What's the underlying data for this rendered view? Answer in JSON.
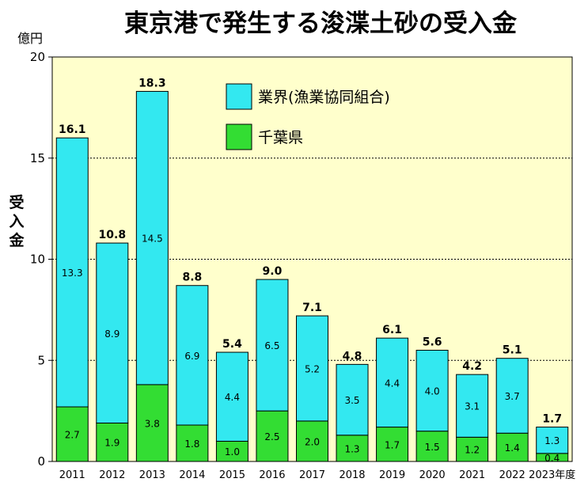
{
  "chart_data": {
    "type": "bar",
    "stacked": true,
    "title": "東京港で発生する浚渫土砂の受入金",
    "unit_label": "億円",
    "ylabel": "受入金",
    "ylim": [
      0,
      20
    ],
    "yticks": [
      0,
      5,
      10,
      15,
      20
    ],
    "grid": true,
    "legend_position": "top-right",
    "categories": [
      "2011",
      "2012",
      "2013",
      "2014",
      "2015",
      "2016",
      "2017",
      "2018",
      "2019",
      "2020",
      "2021",
      "2022",
      "2023年度"
    ],
    "series": [
      {
        "name": "千葉県",
        "color": "#33dd33",
        "values": [
          2.7,
          1.9,
          3.8,
          1.8,
          1.0,
          2.5,
          2.0,
          1.3,
          1.7,
          1.5,
          1.2,
          1.4,
          0.4
        ]
      },
      {
        "name": "業界(漁業協同組合)",
        "color": "#33e8f0",
        "values": [
          13.3,
          8.9,
          14.5,
          6.9,
          4.4,
          6.5,
          5.2,
          3.5,
          4.4,
          4.0,
          3.1,
          3.7,
          1.3
        ]
      }
    ],
    "totals": [
      "16.1",
      "10.8",
      "18.3",
      "8.8",
      "5.4",
      "9.0",
      "7.1",
      "4.8",
      "6.1",
      "5.6",
      "4.2",
      "5.1",
      "1.7"
    ],
    "series_labels": [
      [
        "2.7",
        "1.9",
        "3.8",
        "1.8",
        "1.0",
        "2.5",
        "2.0",
        "1.3",
        "1.7",
        "1.5",
        "1.2",
        "1.4",
        "0.4"
      ],
      [
        "13.3",
        "8.9",
        "14.5",
        "6.9",
        "4.4",
        "6.5",
        "5.2",
        "3.5",
        "4.4",
        "4.0",
        "3.1",
        "3.7",
        "1.3"
      ]
    ],
    "plot_background": "#ffffcc"
  }
}
